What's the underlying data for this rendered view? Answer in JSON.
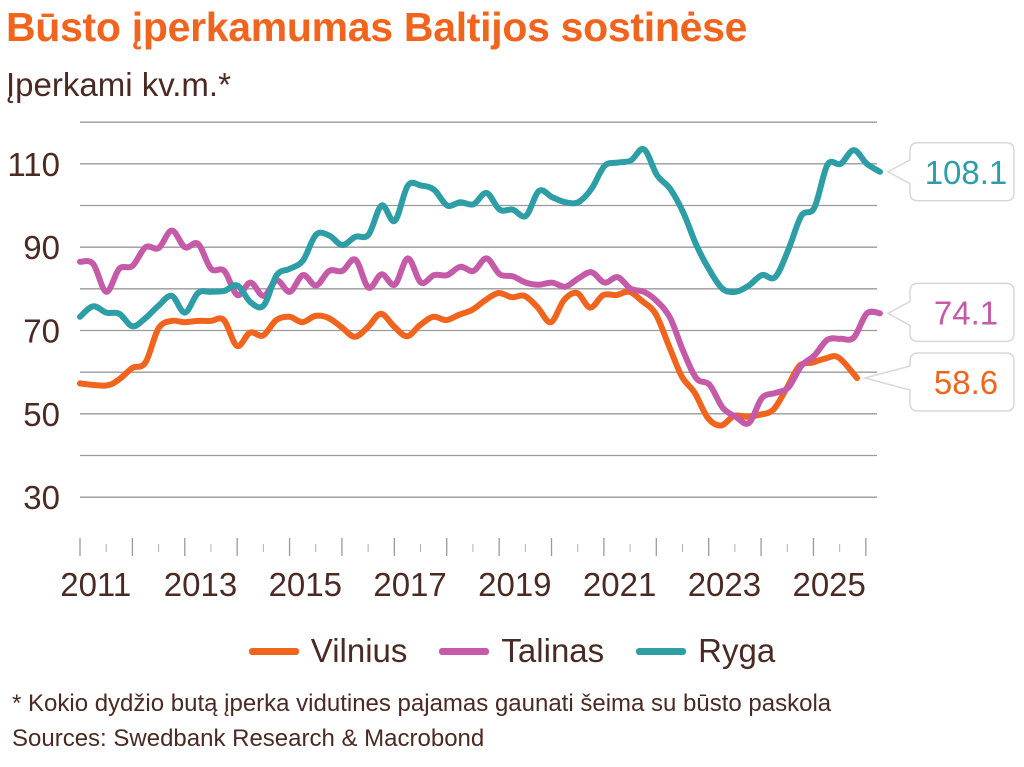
{
  "header": {
    "title": "Būsto įperkamumas Baltijos sostinėse",
    "subtitle": "Įperkami kv.m.*"
  },
  "footer": {
    "footnote": "* Kokio dydžio butą įperka vidutines pajamas gaunati šeima su būsto paskola",
    "source": "Sources: Swedbank Research & Macrobond"
  },
  "colors": {
    "Vilnius": "#f0641e",
    "Talinas": "#c45aa8",
    "Ryga": "#2e9ea6",
    "grid": "#9a9a9a",
    "text": "#4a2a22"
  },
  "chart_data": {
    "type": "line",
    "title": "Būsto įperkamumas Baltijos sostinėse",
    "subtitle": "Įperkami kv.m.*",
    "xlim": [
      2011.0,
      2025.85
    ],
    "ylim": [
      25,
      115
    ],
    "y_ticks": [
      30,
      50,
      70,
      90,
      110
    ],
    "x_ticks": [
      2011,
      2013,
      2015,
      2017,
      2019,
      2021,
      2023,
      2025
    ],
    "grid": true,
    "legend_position": "bottom",
    "series": [
      {
        "name": "Vilnius",
        "end_label": "58.6",
        "points": [
          [
            2011.0,
            57.3
          ],
          [
            2011.5,
            56.8
          ],
          [
            2011.75,
            58.3
          ],
          [
            2012.0,
            61.0
          ],
          [
            2012.25,
            62.3
          ],
          [
            2012.5,
            70.5
          ],
          [
            2012.75,
            72.3
          ],
          [
            2013.0,
            72.0
          ],
          [
            2013.25,
            72.3
          ],
          [
            2013.5,
            72.3
          ],
          [
            2013.75,
            72.5
          ],
          [
            2014.0,
            66.3
          ],
          [
            2014.25,
            69.5
          ],
          [
            2014.5,
            68.8
          ],
          [
            2014.75,
            72.5
          ],
          [
            2015.0,
            73.3
          ],
          [
            2015.25,
            72.0
          ],
          [
            2015.5,
            73.5
          ],
          [
            2015.75,
            73.0
          ],
          [
            2016.0,
            70.8
          ],
          [
            2016.25,
            68.5
          ],
          [
            2016.5,
            70.8
          ],
          [
            2016.75,
            74.0
          ],
          [
            2017.0,
            71.0
          ],
          [
            2017.25,
            68.6
          ],
          [
            2017.5,
            71.3
          ],
          [
            2017.75,
            73.3
          ],
          [
            2018.0,
            72.5
          ],
          [
            2018.25,
            73.8
          ],
          [
            2018.5,
            75.0
          ],
          [
            2018.75,
            77.3
          ],
          [
            2019.0,
            79.0
          ],
          [
            2019.25,
            78.0
          ],
          [
            2019.5,
            78.3
          ],
          [
            2019.75,
            75.5
          ],
          [
            2020.0,
            72.0
          ],
          [
            2020.25,
            77.3
          ],
          [
            2020.5,
            79.0
          ],
          [
            2020.75,
            75.5
          ],
          [
            2021.0,
            78.5
          ],
          [
            2021.25,
            78.5
          ],
          [
            2021.5,
            79.3
          ],
          [
            2021.75,
            77.0
          ],
          [
            2022.0,
            74.0
          ],
          [
            2022.25,
            66.5
          ],
          [
            2022.5,
            59.0
          ],
          [
            2022.75,
            55.0
          ],
          [
            2023.0,
            49.0
          ],
          [
            2023.25,
            47.2
          ],
          [
            2023.5,
            49.5
          ],
          [
            2023.75,
            49.3
          ],
          [
            2024.0,
            49.8
          ],
          [
            2024.25,
            51.0
          ],
          [
            2024.5,
            56.0
          ],
          [
            2024.75,
            61.5
          ],
          [
            2025.0,
            62.3
          ],
          [
            2025.25,
            63.3
          ],
          [
            2025.5,
            63.5
          ],
          [
            2025.85,
            58.6
          ]
        ]
      },
      {
        "name": "Talinas",
        "end_label": "74.1",
        "points": [
          [
            2011.0,
            86.5
          ],
          [
            2011.25,
            86.0
          ],
          [
            2011.5,
            79.3
          ],
          [
            2011.75,
            84.8
          ],
          [
            2012.0,
            85.5
          ],
          [
            2012.25,
            90.0
          ],
          [
            2012.5,
            89.8
          ],
          [
            2012.75,
            94.0
          ],
          [
            2013.0,
            90.0
          ],
          [
            2013.25,
            90.8
          ],
          [
            2013.5,
            84.8
          ],
          [
            2013.75,
            84.3
          ],
          [
            2014.0,
            78.5
          ],
          [
            2014.25,
            81.5
          ],
          [
            2014.5,
            78.3
          ],
          [
            2014.75,
            82.0
          ],
          [
            2015.0,
            79.3
          ],
          [
            2015.25,
            83.3
          ],
          [
            2015.5,
            80.8
          ],
          [
            2015.75,
            84.3
          ],
          [
            2016.0,
            84.3
          ],
          [
            2016.25,
            87.0
          ],
          [
            2016.5,
            80.3
          ],
          [
            2016.75,
            83.5
          ],
          [
            2017.0,
            81.0
          ],
          [
            2017.25,
            87.3
          ],
          [
            2017.5,
            81.5
          ],
          [
            2017.75,
            83.3
          ],
          [
            2018.0,
            83.3
          ],
          [
            2018.25,
            85.3
          ],
          [
            2018.5,
            84.3
          ],
          [
            2018.75,
            87.3
          ],
          [
            2019.0,
            83.5
          ],
          [
            2019.25,
            83.0
          ],
          [
            2019.5,
            81.5
          ],
          [
            2019.75,
            81.0
          ],
          [
            2020.0,
            81.5
          ],
          [
            2020.25,
            80.5
          ],
          [
            2020.5,
            82.5
          ],
          [
            2020.75,
            84.0
          ],
          [
            2021.0,
            81.5
          ],
          [
            2021.25,
            82.8
          ],
          [
            2021.5,
            80.0
          ],
          [
            2021.75,
            79.3
          ],
          [
            2022.0,
            77.0
          ],
          [
            2022.25,
            73.0
          ],
          [
            2022.5,
            65.0
          ],
          [
            2022.75,
            58.5
          ],
          [
            2023.0,
            57.0
          ],
          [
            2023.25,
            51.5
          ],
          [
            2023.5,
            49.3
          ],
          [
            2023.75,
            47.8
          ],
          [
            2024.0,
            53.8
          ],
          [
            2024.25,
            55.0
          ],
          [
            2024.5,
            56.3
          ],
          [
            2024.75,
            61.5
          ],
          [
            2025.0,
            64.0
          ],
          [
            2025.25,
            67.8
          ],
          [
            2025.5,
            68.0
          ],
          [
            2025.75,
            68.3
          ],
          [
            2026.0,
            74.1
          ],
          [
            2026.25,
            74.1
          ]
        ]
      },
      {
        "name": "Ryga",
        "end_label": "108.1",
        "points": [
          [
            2011.0,
            73.3
          ],
          [
            2011.25,
            75.8
          ],
          [
            2011.5,
            74.3
          ],
          [
            2011.75,
            74.0
          ],
          [
            2012.0,
            71.0
          ],
          [
            2012.25,
            73.0
          ],
          [
            2012.5,
            76.0
          ],
          [
            2012.75,
            78.3
          ],
          [
            2013.0,
            74.3
          ],
          [
            2013.25,
            79.0
          ],
          [
            2013.5,
            79.3
          ],
          [
            2013.75,
            79.5
          ],
          [
            2014.0,
            80.8
          ],
          [
            2014.25,
            76.8
          ],
          [
            2014.5,
            76.0
          ],
          [
            2014.75,
            83.3
          ],
          [
            2015.0,
            84.8
          ],
          [
            2015.25,
            86.8
          ],
          [
            2015.5,
            93.0
          ],
          [
            2015.75,
            92.8
          ],
          [
            2016.0,
            90.5
          ],
          [
            2016.25,
            92.5
          ],
          [
            2016.5,
            93.0
          ],
          [
            2016.75,
            100.0
          ],
          [
            2017.0,
            96.3
          ],
          [
            2017.25,
            104.8
          ],
          [
            2017.5,
            104.8
          ],
          [
            2017.75,
            103.8
          ],
          [
            2018.0,
            100.0
          ],
          [
            2018.25,
            100.8
          ],
          [
            2018.5,
            100.3
          ],
          [
            2018.75,
            103.0
          ],
          [
            2019.0,
            99.0
          ],
          [
            2019.25,
            99.0
          ],
          [
            2019.5,
            97.5
          ],
          [
            2019.75,
            103.5
          ],
          [
            2020.0,
            102.0
          ],
          [
            2020.25,
            100.8
          ],
          [
            2020.5,
            100.8
          ],
          [
            2020.75,
            104.0
          ],
          [
            2021.0,
            109.5
          ],
          [
            2021.25,
            110.3
          ],
          [
            2021.5,
            110.8
          ],
          [
            2021.75,
            113.5
          ],
          [
            2022.0,
            107.3
          ],
          [
            2022.25,
            104.0
          ],
          [
            2022.5,
            98.3
          ],
          [
            2022.75,
            90.5
          ],
          [
            2023.0,
            84.5
          ],
          [
            2023.25,
            80.0
          ],
          [
            2023.5,
            79.3
          ],
          [
            2023.75,
            80.8
          ],
          [
            2024.0,
            83.3
          ],
          [
            2024.25,
            82.8
          ],
          [
            2024.5,
            89.3
          ],
          [
            2024.75,
            97.5
          ],
          [
            2025.0,
            99.5
          ],
          [
            2025.25,
            109.8
          ],
          [
            2025.5,
            110.0
          ],
          [
            2025.75,
            113.3
          ],
          [
            2026.0,
            110.0
          ],
          [
            2026.25,
            108.1
          ]
        ]
      }
    ]
  }
}
